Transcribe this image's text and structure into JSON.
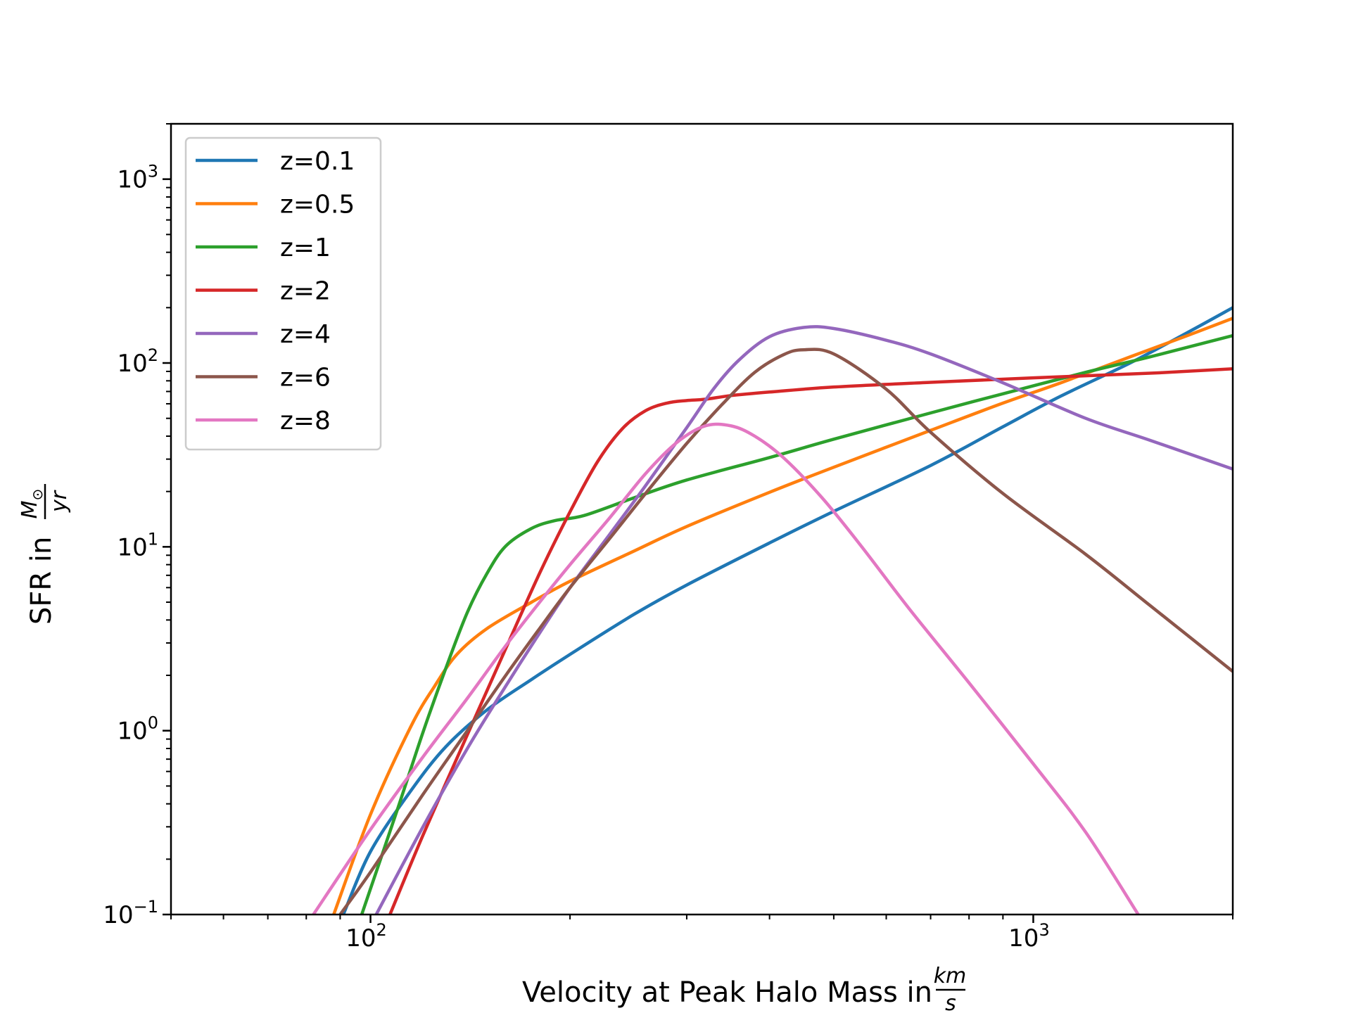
{
  "chart_data": {
    "type": "line",
    "title": "",
    "xlabel": "Velocity at Peak Halo Mass in",
    "xlabel_unit": {
      "numerator": "km",
      "denominator": "s"
    },
    "ylabel": "SFR in",
    "ylabel_unit": {
      "numerator": "M",
      "numerator_sub": "⊙",
      "denominator": "yr"
    },
    "xscale": "log",
    "yscale": "log",
    "xlim": [
      50,
      2000
    ],
    "ylim": [
      0.1,
      2000
    ],
    "grid": false,
    "legend_position": "top-left",
    "x_ticks": [
      {
        "value": 100,
        "base": "10",
        "exp": "2"
      },
      {
        "value": 1000,
        "base": "10",
        "exp": "3"
      }
    ],
    "y_ticks": [
      {
        "value": 0.1,
        "base": "10",
        "exp": "−1"
      },
      {
        "value": 1,
        "base": "10",
        "exp": "0"
      },
      {
        "value": 10,
        "base": "10",
        "exp": "1"
      },
      {
        "value": 100,
        "base": "10",
        "exp": "2"
      },
      {
        "value": 1000,
        "base": "10",
        "exp": "3"
      }
    ],
    "series": [
      {
        "name": "z=0.1",
        "color": "#1f77b4",
        "x": [
          91,
          100,
          115,
          130,
          150,
          175,
          200,
          250,
          300,
          400,
          500,
          700,
          900,
          1100,
          1400,
          1700,
          2000
        ],
        "y": [
          0.1,
          0.22,
          0.47,
          0.82,
          1.3,
          1.9,
          2.6,
          4.3,
          6.2,
          10.5,
          15.6,
          27.7,
          45,
          66,
          100,
          145,
          200
        ]
      },
      {
        "name": "z=0.5",
        "color": "#ff7f0e",
        "x": [
          88,
          100,
          115,
          125,
          135,
          150,
          175,
          200,
          250,
          300,
          400,
          500,
          700,
          900,
          1100,
          1400,
          1700,
          2000
        ],
        "y": [
          0.1,
          0.35,
          1.05,
          1.75,
          2.6,
          3.6,
          5.0,
          6.5,
          9.5,
          12.9,
          19.8,
          27.1,
          43,
          60.5,
          78,
          108,
          140,
          175
        ]
      },
      {
        "name": "z=1",
        "color": "#2ca02c",
        "x": [
          97,
          110,
          120,
          130,
          140,
          150,
          160,
          175,
          190,
          210,
          250,
          300,
          400,
          500,
          700,
          900,
          1200,
          1500,
          2000
        ],
        "y": [
          0.1,
          0.38,
          0.98,
          2.2,
          4.4,
          7.2,
          10.1,
          12.6,
          13.9,
          14.8,
          18.5,
          23.1,
          30.6,
          38.5,
          53.5,
          68,
          89,
          108,
          141
        ]
      },
      {
        "name": "z=2",
        "color": "#d62728",
        "x": [
          107,
          120,
          140,
          160,
          180,
          200,
          220,
          240,
          260,
          280,
          300,
          320,
          350,
          400,
          500,
          700,
          1000,
          1500,
          2000
        ],
        "y": [
          0.1,
          0.27,
          0.95,
          2.8,
          7.2,
          15.5,
          29,
          44,
          55,
          60.5,
          62.5,
          63.5,
          66.5,
          69.5,
          74,
          78.5,
          83,
          88,
          93
        ]
      },
      {
        "name": "z=4",
        "color": "#9467bd",
        "x": [
          102,
          120,
          140,
          160,
          180,
          200,
          230,
          260,
          300,
          330,
          360,
          400,
          450,
          500,
          600,
          700,
          900,
          1200,
          1500,
          2000
        ],
        "y": [
          0.1,
          0.3,
          0.8,
          1.75,
          3.4,
          6.0,
          11.8,
          21.5,
          44.5,
          73,
          104,
          139,
          156,
          154,
          133,
          112,
          78,
          50,
          38,
          26.5
        ]
      },
      {
        "name": "z=6",
        "color": "#8c564b",
        "x": [
          90,
          100,
          120,
          140,
          160,
          180,
          200,
          230,
          260,
          300,
          340,
          380,
          420,
          450,
          500,
          600,
          700,
          900,
          1200,
          1500,
          2000
        ],
        "y": [
          0.1,
          0.17,
          0.45,
          1.0,
          2.0,
          3.6,
          6.0,
          11.2,
          19.5,
          36.5,
          60,
          89,
          111,
          118,
          112,
          72,
          42,
          19.5,
          9.1,
          4.8,
          2.1
        ]
      },
      {
        "name": "z=8",
        "color": "#e377c2",
        "x": [
          82,
          100,
          120,
          140,
          160,
          180,
          200,
          230,
          260,
          290,
          320,
          350,
          380,
          420,
          480,
          550,
          650,
          800,
          1000,
          1200,
          1440
        ],
        "y": [
          0.1,
          0.29,
          0.72,
          1.5,
          2.9,
          5.0,
          8.0,
          14.5,
          25,
          37,
          45.5,
          45.5,
          40,
          30.5,
          18.5,
          10.1,
          4.6,
          1.82,
          0.66,
          0.28,
          0.1
        ]
      }
    ]
  }
}
